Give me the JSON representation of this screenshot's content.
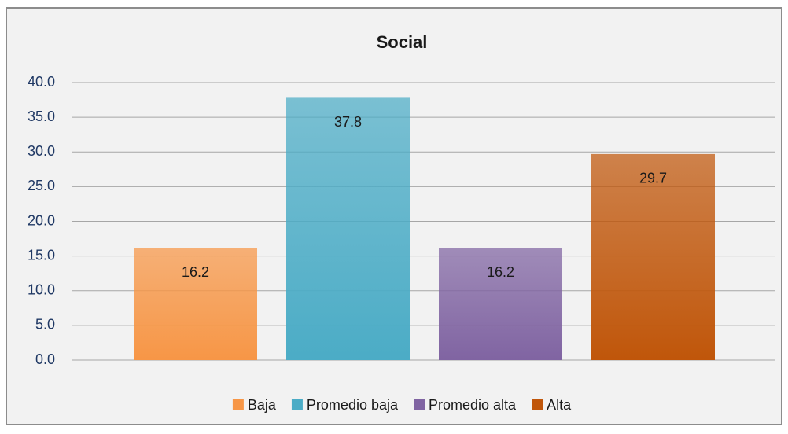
{
  "chart_data": {
    "type": "bar",
    "title": "Social",
    "series": [
      {
        "name": "Baja",
        "color": "#f79646",
        "values": [
          16.2
        ]
      },
      {
        "name": "Promedio baja",
        "color": "#4bacc6",
        "values": [
          37.8
        ]
      },
      {
        "name": "Promedio alta",
        "color": "#8064a2",
        "values": [
          16.2
        ]
      },
      {
        "name": "Alta",
        "color": "#c0560a",
        "values": [
          29.7
        ]
      }
    ],
    "ylim": [
      0,
      40
    ],
    "yticks": [
      {
        "value": 0,
        "label": "0.0"
      },
      {
        "value": 5,
        "label": "5.0"
      },
      {
        "value": 10,
        "label": "10.0"
      },
      {
        "value": 15,
        "label": "15.0"
      },
      {
        "value": 20,
        "label": "20.0"
      },
      {
        "value": 25,
        "label": "25.0"
      },
      {
        "value": 30,
        "label": "30.0"
      },
      {
        "value": 35,
        "label": "35.0"
      },
      {
        "value": 40,
        "label": "40.0"
      }
    ],
    "grid": true,
    "legend": "bottom"
  }
}
